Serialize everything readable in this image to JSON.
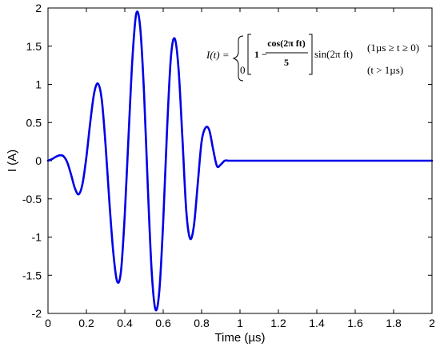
{
  "chart_data": {
    "type": "line",
    "title": "",
    "xlabel": "Time (µs)",
    "ylabel": "I (A)",
    "xlim": [
      0,
      2
    ],
    "ylim": [
      -2,
      2
    ],
    "xticks": [
      "0",
      "0.2",
      "0.4",
      "0.6",
      "0.8",
      "1",
      "1.2",
      "1.4",
      "1.6",
      "1.8",
      "2"
    ],
    "yticks": [
      "2",
      "1.5",
      "1",
      "0.5",
      "0",
      "-0.5",
      "-1",
      "-1.5",
      "-2"
    ],
    "grid": false,
    "line_color": "#0000e6",
    "series": [
      {
        "x": [
          0,
          0.02,
          0.04,
          0.06,
          0.08,
          0.1,
          0.12,
          0.14,
          0.16,
          0.18,
          0.2,
          0.22,
          0.24,
          0.26,
          0.28,
          0.3,
          0.32,
          0.34,
          0.36,
          0.38,
          0.4,
          0.42,
          0.44,
          0.46,
          0.48,
          0.5,
          0.52,
          0.54,
          0.56,
          0.58,
          0.6,
          0.62,
          0.64,
          0.66,
          0.68,
          0.7,
          0.72,
          0.74,
          0.76,
          0.78,
          0.8,
          0.82,
          0.84,
          0.86,
          0.88,
          0.9,
          0.92,
          0.94,
          0.96,
          1.0,
          1.2,
          1.4,
          1.6,
          1.8,
          2.0
        ],
        "y": [
          0,
          0.02,
          0.05,
          0.07,
          0.06,
          -0.02,
          -0.18,
          -0.36,
          -0.44,
          -0.3,
          0.05,
          0.5,
          0.88,
          1.01,
          0.8,
          0.2,
          -0.55,
          -1.2,
          -1.58,
          -1.45,
          -0.7,
          0.35,
          1.35,
          1.93,
          1.75,
          0.9,
          -0.35,
          -1.45,
          -1.95,
          -1.7,
          -0.8,
          0.4,
          1.35,
          1.6,
          1.2,
          0.3,
          -0.65,
          -1.02,
          -0.85,
          -0.3,
          0.25,
          0.43,
          0.4,
          0.15,
          -0.07,
          -0.05,
          0,
          0,
          0,
          0,
          0,
          0,
          0,
          0,
          0
        ]
      }
    ],
    "annotations": {
      "lhs": "I(t) =",
      "case1_one": "1 −",
      "case1_num": "cos(2π ft)",
      "case1_den": "5",
      "case1_sin": "sin(2π ft)",
      "case1_cond": "(1µs ≥ t ≥ 0)",
      "case2_val": "0",
      "case2_cond": "(t > 1µs)"
    }
  }
}
